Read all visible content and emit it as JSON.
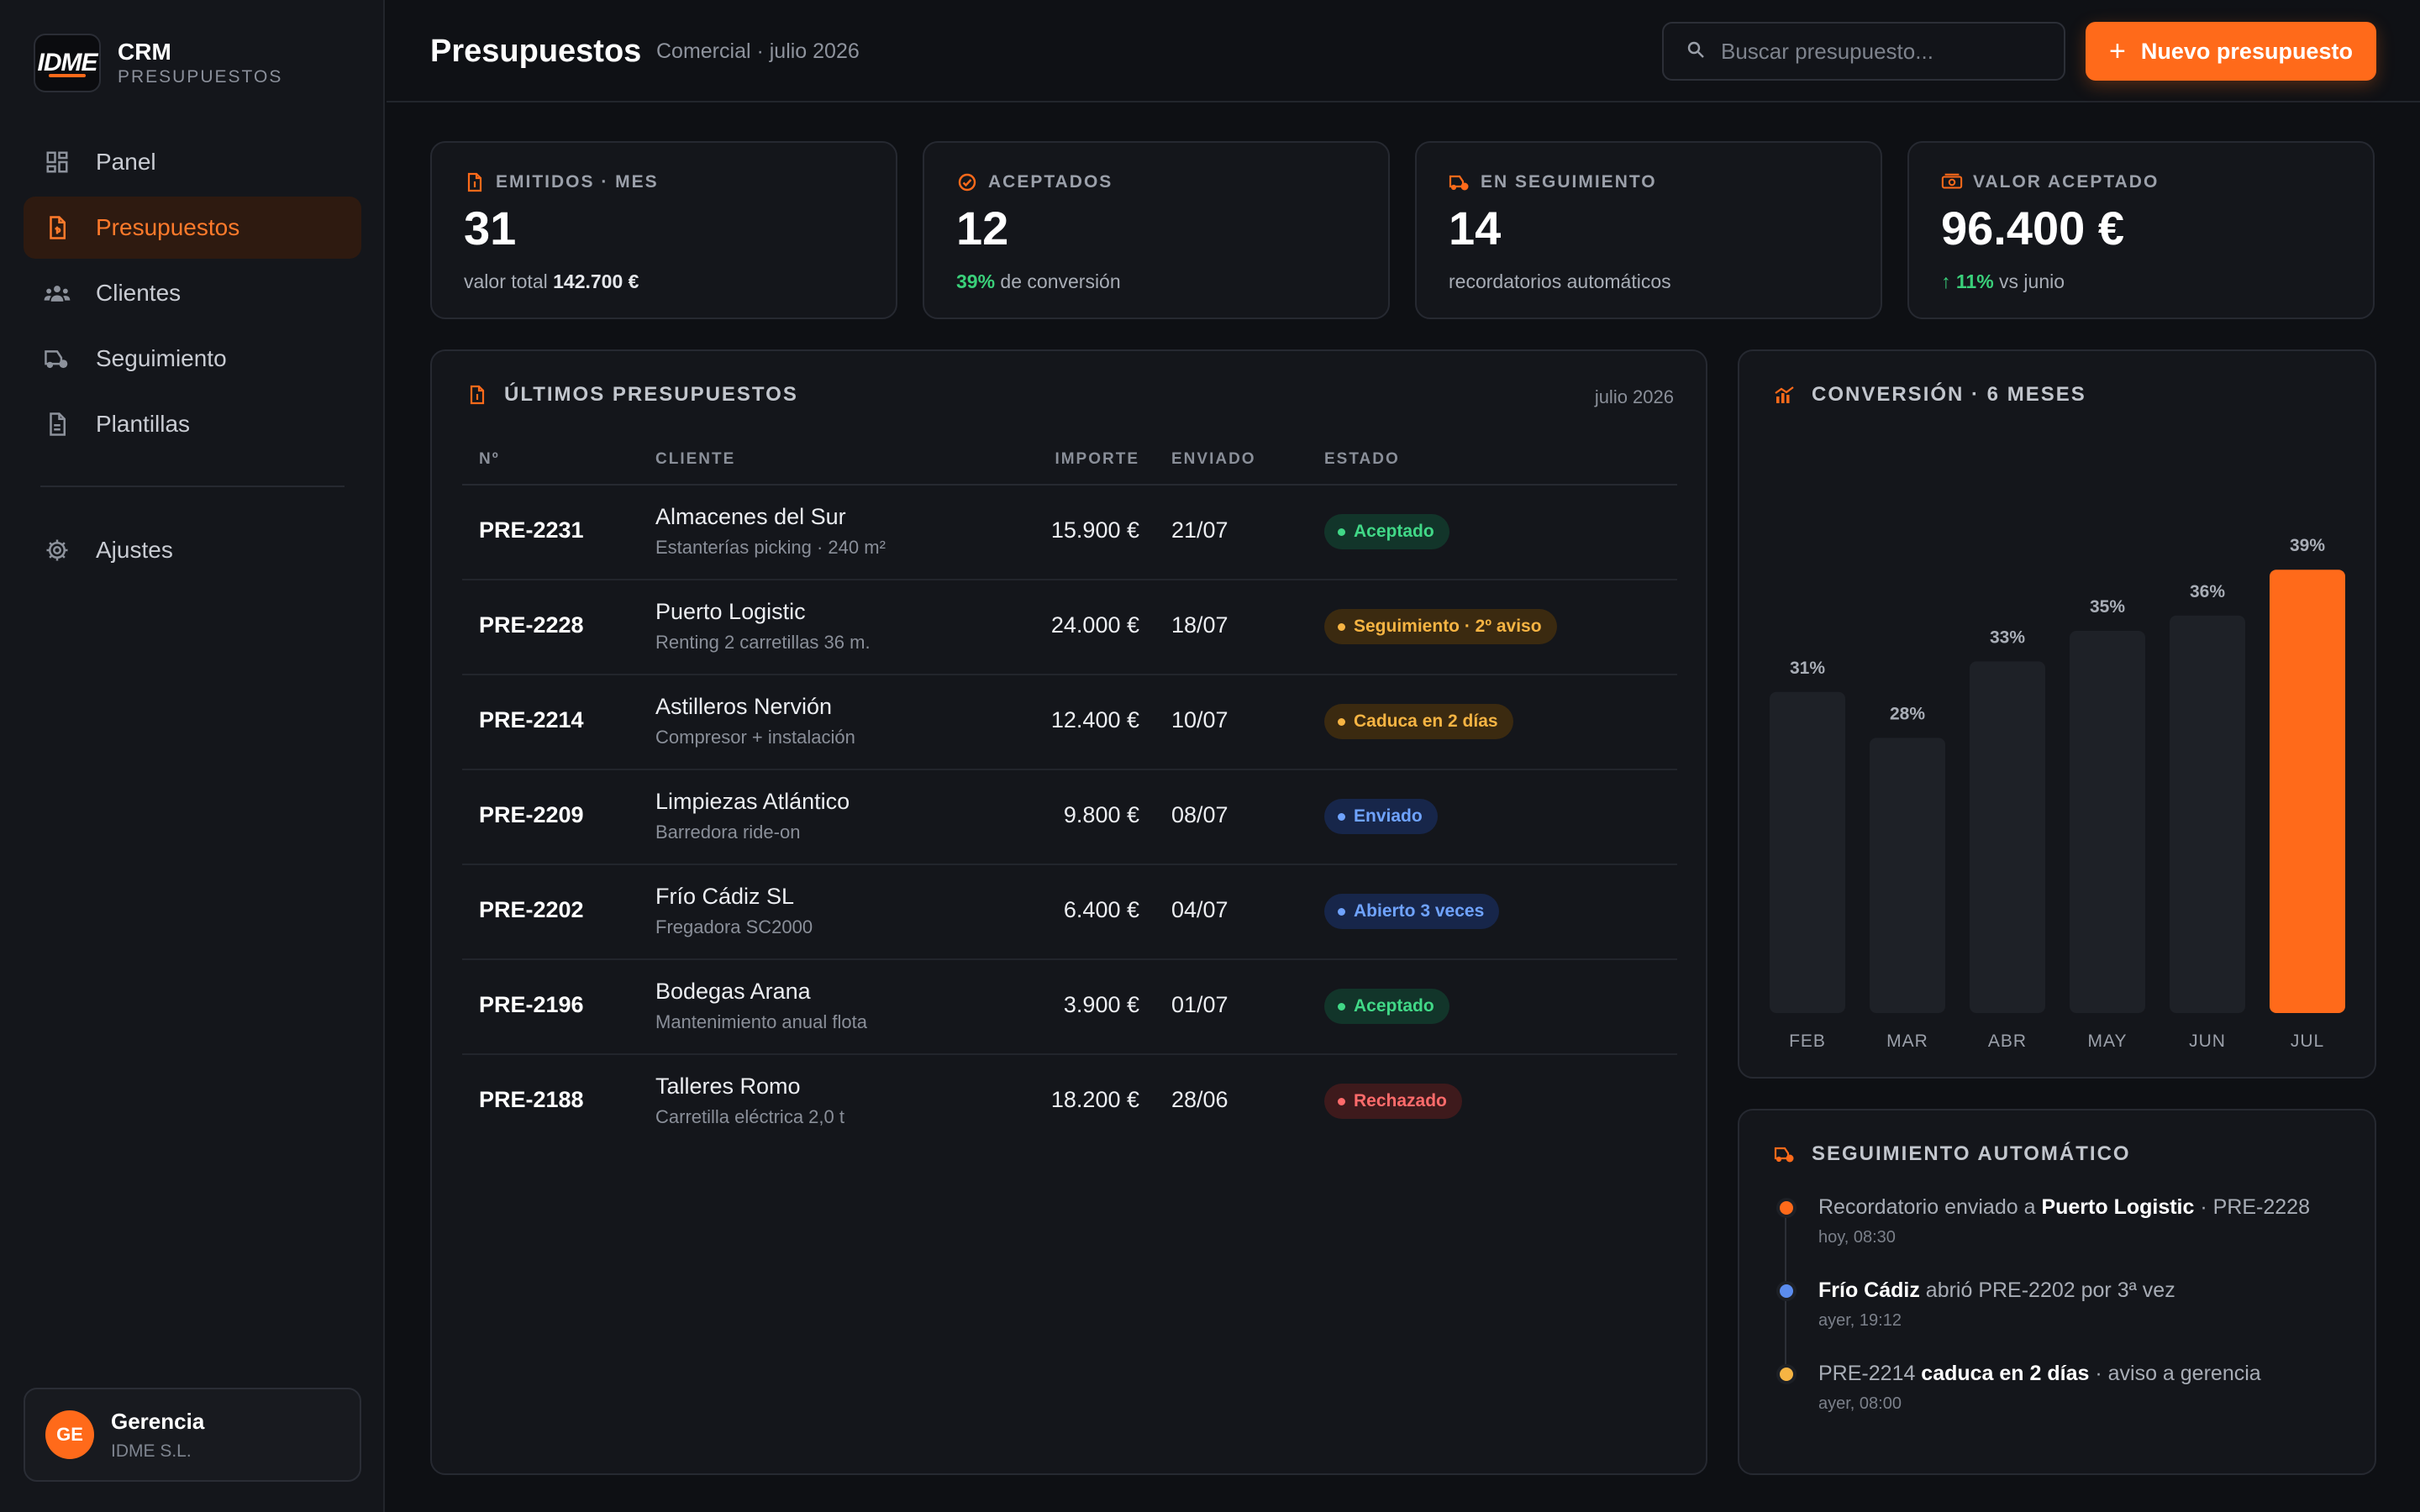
{
  "brand": {
    "logo": "IDME",
    "name": "CRM",
    "subtitle": "PRESUPUESTOS"
  },
  "nav": [
    {
      "label": "Panel",
      "icon": "grid-icon",
      "active": false
    },
    {
      "label": "Presupuestos",
      "icon": "document-icon",
      "active": true
    },
    {
      "label": "Clientes",
      "icon": "users-icon",
      "active": false
    },
    {
      "label": "Seguimiento",
      "icon": "truck-icon",
      "active": false
    },
    {
      "label": "Plantillas",
      "icon": "file-icon",
      "active": false
    }
  ],
  "nav_bottom": {
    "label": "Ajustes",
    "icon": "gear-icon"
  },
  "user": {
    "initials": "GE",
    "name": "Gerencia",
    "org": "IDME S.L."
  },
  "header": {
    "title": "Presupuestos",
    "subtitle": "Comercial · julio 2026",
    "search_placeholder": "Buscar presupuesto...",
    "new_button": "Nuevo presupuesto"
  },
  "kpis": [
    {
      "label": "EMITIDOS · MES",
      "value": "31",
      "note_pre": "valor total ",
      "note_bold": "142.700 €",
      "note_post": "",
      "note_green": ""
    },
    {
      "label": "ACEPTADOS",
      "value": "12",
      "note_pre": "",
      "note_bold": "",
      "note_green": "39%",
      "note_post": " de conversión"
    },
    {
      "label": "EN SEGUIMIENTO",
      "value": "14",
      "note_pre": "recordatorios automáticos",
      "note_bold": "",
      "note_green": "",
      "note_post": ""
    },
    {
      "label": "VALOR ACEPTADO",
      "value": "96.400 €",
      "note_pre": "",
      "note_bold": "",
      "note_green": "↑ 11%",
      "note_post": " vs junio"
    }
  ],
  "table": {
    "title": "ÚLTIMOS PRESUPUESTOS",
    "period": "julio 2026",
    "columns": {
      "id": "Nº",
      "client": "CLIENTE",
      "amount": "IMPORTE",
      "sent": "ENVIADO",
      "status": "ESTADO"
    },
    "rows": [
      {
        "id": "PRE-2231",
        "client": "Almacenes del Sur",
        "desc": "Estanterías picking · 240 m²",
        "amount": "15.900 €",
        "sent": "21/07",
        "status": "Aceptado",
        "tone": "green"
      },
      {
        "id": "PRE-2228",
        "client": "Puerto Logistic",
        "desc": "Renting 2 carretillas 36 m.",
        "amount": "24.000 €",
        "sent": "18/07",
        "status": "Seguimiento · 2º aviso",
        "tone": "amber"
      },
      {
        "id": "PRE-2214",
        "client": "Astilleros Nervión",
        "desc": "Compresor + instalación",
        "amount": "12.400 €",
        "sent": "10/07",
        "status": "Caduca en 2 días",
        "tone": "amber"
      },
      {
        "id": "PRE-2209",
        "client": "Limpiezas Atlántico",
        "desc": "Barredora ride-on",
        "amount": "9.800 €",
        "sent": "08/07",
        "status": "Enviado",
        "tone": "blue"
      },
      {
        "id": "PRE-2202",
        "client": "Frío Cádiz SL",
        "desc": "Fregadora SC2000",
        "amount": "6.400 €",
        "sent": "04/07",
        "status": "Abierto 3 veces",
        "tone": "blue"
      },
      {
        "id": "PRE-2196",
        "client": "Bodegas Arana",
        "desc": "Mantenimiento anual flota",
        "amount": "3.900 €",
        "sent": "01/07",
        "status": "Aceptado",
        "tone": "green"
      },
      {
        "id": "PRE-2188",
        "client": "Talleres Romo",
        "desc": "Carretilla eléctrica 2,0 t",
        "amount": "18.200 €",
        "sent": "28/06",
        "status": "Rechazado",
        "tone": "red"
      }
    ]
  },
  "chart_data": {
    "type": "bar",
    "title": "CONVERSIÓN · 6 MESES",
    "categories": [
      "FEB",
      "MAR",
      "ABR",
      "MAY",
      "JUN",
      "JUL"
    ],
    "values": [
      31,
      28,
      33,
      35,
      36,
      39
    ],
    "value_labels": [
      "31%",
      "28%",
      "33%",
      "35%",
      "36%",
      "39%"
    ],
    "highlight": "JUL",
    "colors": {
      "bar": "#1e2127",
      "highlight": "#ff6a1a"
    }
  },
  "followup": {
    "title": "SEGUIMIENTO AUTOMÁTICO",
    "items": [
      {
        "pre": "Recordatorio enviado a ",
        "bold": "Puerto Logistic",
        "post": " · PRE-2228",
        "time": "hoy, 08:30",
        "color": "#ff6a1a"
      },
      {
        "pre": "",
        "bold": "Frío Cádiz",
        "post": " abrió PRE-2202 por 3ª vez",
        "time": "ayer, 19:12",
        "color": "#5b8def"
      },
      {
        "pre": "PRE-2214 ",
        "bold": "caduca en 2 días",
        "post": " · aviso a gerencia",
        "time": "ayer, 08:00",
        "color": "#f6b443"
      }
    ]
  },
  "colors": {
    "accent": "#ff6a1a",
    "background": "#0e1014",
    "panel": "#14161b"
  }
}
